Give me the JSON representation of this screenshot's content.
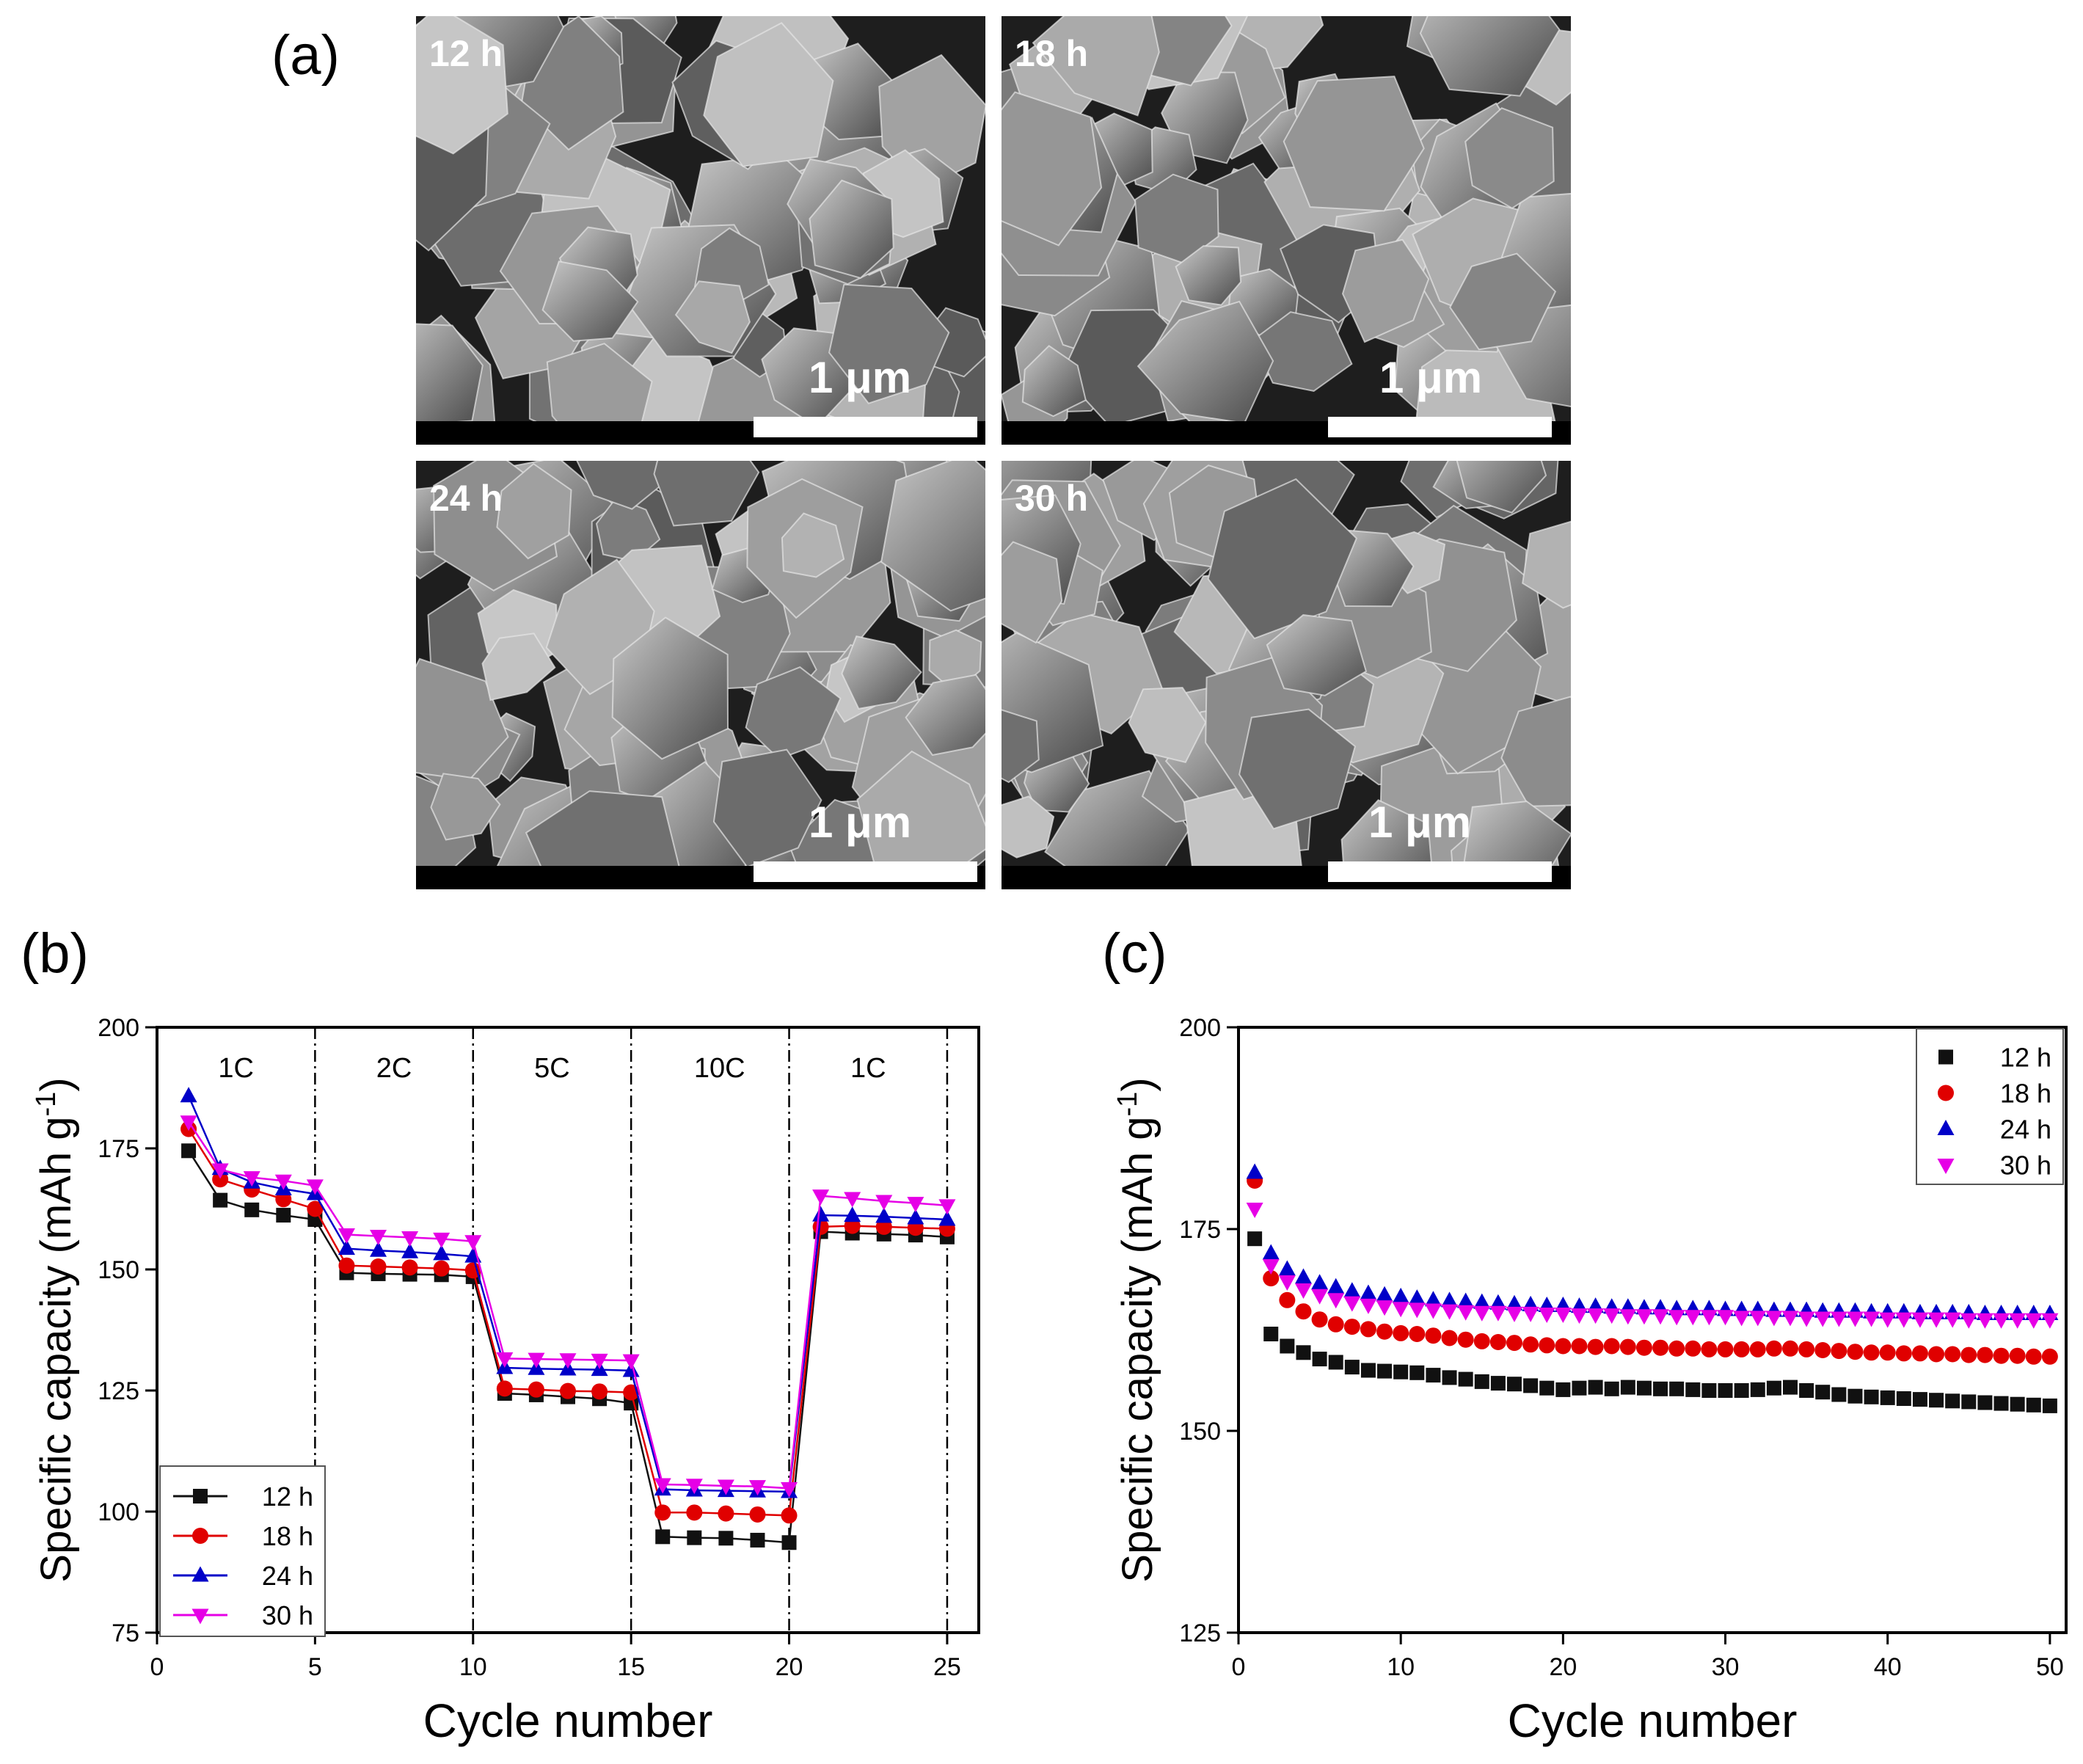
{
  "figure": {
    "panel_a_label": "(a)",
    "panel_b_label": "(b)",
    "panel_c_label": "(c)",
    "sem_images": [
      {
        "time": "12 h",
        "scale": "1 μm"
      },
      {
        "time": "18 h",
        "scale": "1 μm"
      },
      {
        "time": "24 h",
        "scale": "1 μm"
      },
      {
        "time": "30 h",
        "scale": "1 μm"
      }
    ]
  },
  "colors": {
    "12 h": "#111111",
    "18 h": "#e00000",
    "24 h": "#0000c8",
    "30 h": "#e600e6"
  },
  "chart_data": [
    {
      "type": "line",
      "panel": "b",
      "xlabel": "Cycle number",
      "ylabel": "Specific capacity (mAh g-1)",
      "xlim": [
        0,
        26
      ],
      "ylim": [
        75,
        200
      ],
      "xticks": [
        0,
        5,
        10,
        15,
        20,
        25
      ],
      "yticks": [
        75,
        100,
        125,
        150,
        175,
        200
      ],
      "rate_dividers": [
        5,
        10,
        15,
        20,
        25
      ],
      "rate_labels": [
        {
          "label": "1C",
          "x": 2.5
        },
        {
          "label": "2C",
          "x": 7.5
        },
        {
          "label": "5C",
          "x": 12.5
        },
        {
          "label": "10C",
          "x": 17.8
        },
        {
          "label": "1C",
          "x": 22.5
        }
      ],
      "legend": "bottom-left",
      "x": [
        1,
        2,
        3,
        4,
        5,
        6,
        7,
        8,
        9,
        10,
        11,
        12,
        13,
        14,
        15,
        16,
        17,
        18,
        19,
        20,
        21,
        22,
        23,
        24,
        25
      ],
      "series": [
        {
          "name": "12 h",
          "marker": "square",
          "values": [
            174.5,
            164.3,
            162.3,
            161.2,
            160.3,
            149.3,
            149.1,
            149,
            148.9,
            148.5,
            124.4,
            124.1,
            123.7,
            123.3,
            122.4,
            94.8,
            94.6,
            94.5,
            94.1,
            93.6,
            157.8,
            157.5,
            157.3,
            157.1,
            156.7
          ]
        },
        {
          "name": "18 h",
          "marker": "circle",
          "values": [
            179,
            168.6,
            166.5,
            164.5,
            162.5,
            150.8,
            150.6,
            150.4,
            150.2,
            149.8,
            125.4,
            125.2,
            124.9,
            124.8,
            124.6,
            99.8,
            99.8,
            99.6,
            99.4,
            99.2,
            158.8,
            159,
            158.8,
            158.6,
            158.4
          ]
        },
        {
          "name": "24 h",
          "marker": "triangle-up",
          "values": [
            185.8,
            170.8,
            168,
            166.6,
            165.6,
            154.3,
            153.9,
            153.6,
            153.2,
            152.7,
            129.7,
            129.5,
            129.4,
            129.3,
            129.1,
            104.6,
            104.4,
            104.3,
            104.2,
            104.1,
            161.2,
            161.1,
            160.9,
            160.6,
            160.3
          ]
        },
        {
          "name": "30 h",
          "marker": "triangle-down",
          "values": [
            180.5,
            170.6,
            169,
            168.3,
            167.3,
            157.2,
            156.9,
            156.6,
            156.3,
            155.8,
            131.6,
            131.5,
            131.4,
            131.3,
            131.2,
            105.6,
            105.5,
            105.3,
            105.2,
            104.8,
            165.2,
            164.7,
            164.1,
            163.7,
            163.2
          ]
        }
      ]
    },
    {
      "type": "scatter",
      "panel": "c",
      "xlabel": "Cycle number",
      "ylabel": "Specific capacity (mAh g-1)",
      "xlim": [
        0,
        51
      ],
      "ylim": [
        125,
        200
      ],
      "xticks": [
        0,
        10,
        20,
        30,
        40,
        50
      ],
      "yticks": [
        125,
        150,
        175,
        200
      ],
      "legend": "top-right",
      "x": [
        1,
        2,
        3,
        4,
        5,
        6,
        7,
        8,
        9,
        10,
        11,
        12,
        13,
        14,
        15,
        16,
        17,
        18,
        19,
        20,
        21,
        22,
        23,
        24,
        25,
        26,
        27,
        28,
        29,
        30,
        31,
        32,
        33,
        34,
        35,
        36,
        37,
        38,
        39,
        40,
        41,
        42,
        43,
        44,
        45,
        46,
        47,
        48,
        49,
        50
      ],
      "series": [
        {
          "name": "12 h",
          "marker": "square",
          "values": [
            173.8,
            162,
            160.5,
            159.7,
            158.9,
            158.5,
            157.9,
            157.5,
            157.4,
            157.3,
            157.2,
            156.9,
            156.6,
            156.4,
            156.1,
            155.9,
            155.8,
            155.6,
            155.3,
            155.1,
            155.3,
            155.4,
            155.2,
            155.4,
            155.3,
            155.2,
            155.2,
            155.1,
            155,
            155,
            155,
            155.1,
            155.3,
            155.4,
            155,
            154.8,
            154.5,
            154.3,
            154.2,
            154.1,
            154,
            153.9,
            153.8,
            153.7,
            153.6,
            153.5,
            153.4,
            153.3,
            153.2,
            153.1
          ]
        },
        {
          "name": "18 h",
          "marker": "circle",
          "values": [
            181,
            168.9,
            166.2,
            164.8,
            163.8,
            163.2,
            162.9,
            162.6,
            162.3,
            162.1,
            162,
            161.8,
            161.5,
            161.3,
            161.1,
            161,
            160.9,
            160.7,
            160.6,
            160.5,
            160.5,
            160.4,
            160.5,
            160.4,
            160.3,
            160.3,
            160.2,
            160.2,
            160.1,
            160.1,
            160.1,
            160.1,
            160.2,
            160.2,
            160.1,
            160,
            159.9,
            159.8,
            159.7,
            159.7,
            159.6,
            159.6,
            159.5,
            159.5,
            159.4,
            159.4,
            159.3,
            159.3,
            159.2,
            159.2
          ]
        },
        {
          "name": "24 h",
          "marker": "triangle-up",
          "values": [
            182,
            172,
            170,
            169,
            168.3,
            167.8,
            167.3,
            167,
            166.8,
            166.6,
            166.4,
            166.2,
            166.1,
            166,
            165.9,
            165.8,
            165.7,
            165.6,
            165.5,
            165.5,
            165.4,
            165.4,
            165.3,
            165.3,
            165.2,
            165.2,
            165.1,
            165.1,
            165.1,
            165,
            165,
            165,
            164.9,
            164.9,
            164.9,
            164.8,
            164.8,
            164.8,
            164.7,
            164.7,
            164.7,
            164.6,
            164.6,
            164.6,
            164.6,
            164.5,
            164.5,
            164.5,
            164.5,
            164.5
          ]
        },
        {
          "name": "30 h",
          "marker": "triangle-down",
          "values": [
            177.5,
            170.5,
            168.5,
            167.5,
            166.8,
            166.3,
            165.9,
            165.6,
            165.4,
            165.2,
            165.1,
            165,
            164.9,
            164.8,
            164.7,
            164.7,
            164.6,
            164.6,
            164.5,
            164.5,
            164.4,
            164.4,
            164.4,
            164.3,
            164.3,
            164.3,
            164.2,
            164.2,
            164.2,
            164.2,
            164.1,
            164.1,
            164.1,
            164.1,
            164,
            164,
            164,
            164,
            164,
            163.9,
            163.9,
            163.9,
            163.9,
            163.9,
            163.8,
            163.8,
            163.8,
            163.8,
            163.8,
            163.8
          ]
        }
      ]
    }
  ]
}
